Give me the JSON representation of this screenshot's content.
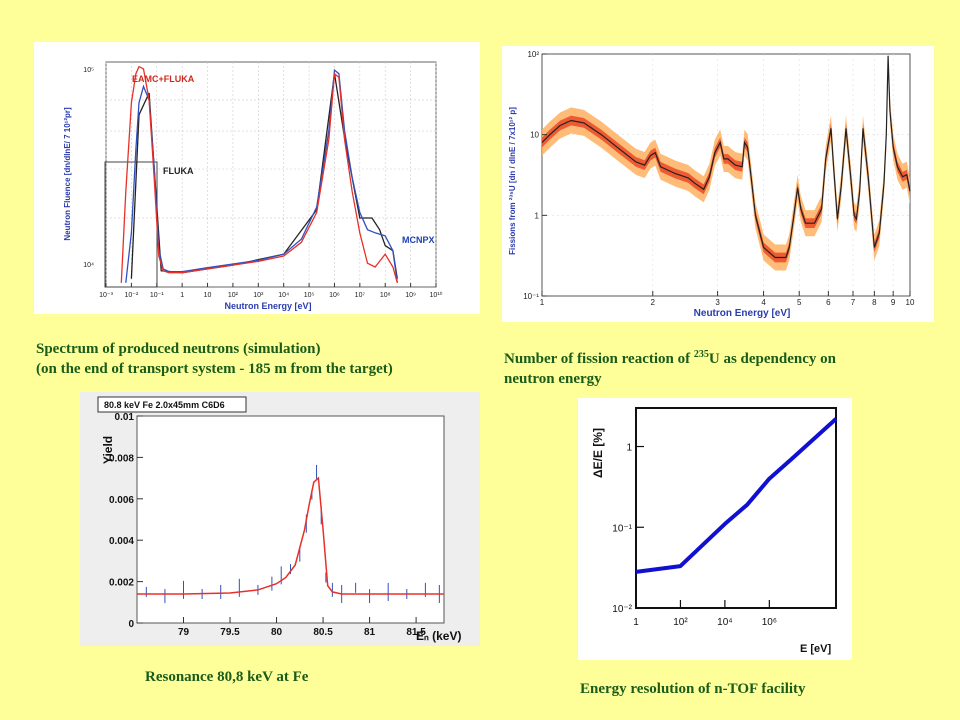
{
  "captions": {
    "c1_line1": "Spectrum of produced neutrons (simulation)",
    "c1_line2": "(on the end of transport system - 185 m from the target)",
    "c2_pre": "Number of fission reaction of ",
    "c2_sup": "235",
    "c2_post": "U as dependency on",
    "c2_line2": "neutron energy",
    "c3": "Resonance 80,8 keV at Fe",
    "c4": "Energy resolution of n-TOF facility"
  },
  "colors": {
    "background": "#ffff99",
    "caption": "#1a5c1a",
    "red": "#e8302a",
    "blue": "#3050c0",
    "dark": "#222222",
    "orange": "#ff8a1a",
    "resolution": "#1010d0"
  },
  "chart_data": [
    {
      "id": "spectrum",
      "type": "line",
      "xlabel": "Neutron Energy [eV]",
      "ylabel": "Neutron Fluence [dn/dlnE/ 7 10¹²pr]",
      "xscale": "log",
      "yscale": "log",
      "xlim": [
        0.001,
        10000000000
      ],
      "ylim": [
        40000,
        150000
      ],
      "x_ticks": [
        "10⁻³",
        "10⁻²",
        "10⁻¹",
        "1",
        "10",
        "10²",
        "10³",
        "10⁴",
        "10⁵",
        "10⁶",
        "10⁷",
        "10⁸",
        "10⁹",
        "10¹⁰"
      ],
      "y_ticks": [
        "10⁵",
        "10⁴"
      ],
      "annotations": [
        "EAMC+FLUKA",
        "FLUKA",
        "MCNPX"
      ],
      "series": [
        {
          "name": "EAMC+FLUKA",
          "color": "#e8302a",
          "x": [
            0.004,
            0.006,
            0.01,
            0.015,
            0.02,
            0.03,
            0.05,
            0.08,
            0.12,
            0.18,
            0.3,
            1,
            10,
            100,
            1000,
            10000,
            50000,
            200000,
            600000,
            1000000,
            1500000,
            2500000,
            5000000,
            10000000,
            20000000,
            40000000,
            100000000,
            200000000,
            300000000
          ],
          "y": [
            41000,
            70000,
            118000,
            140000,
            146000,
            144000,
            120000,
            75000,
            48000,
            44000,
            43500,
            43500,
            44500,
            45500,
            46500,
            48000,
            52000,
            62000,
            95000,
            140000,
            137000,
            95000,
            70000,
            55000,
            46000,
            45000,
            48500,
            45000,
            41000
          ]
        },
        {
          "name": "FLUKA",
          "color": "#3050c0",
          "x": [
            0.006,
            0.01,
            0.015,
            0.02,
            0.03,
            0.05,
            0.08,
            0.12,
            0.18,
            0.3,
            1,
            10,
            100,
            1000,
            10000,
            50000,
            200000,
            600000,
            1000000,
            1500000,
            2500000,
            5000000,
            10000000,
            20000000,
            40000000,
            100000000,
            200000000,
            300000000
          ],
          "y": [
            41000,
            55000,
            90000,
            118000,
            130000,
            120000,
            80000,
            50000,
            44500,
            43800,
            43800,
            44800,
            45800,
            46800,
            48500,
            53000,
            64000,
            100000,
            143000,
            140000,
            100000,
            76000,
            62000,
            56000,
            55000,
            54000,
            49500,
            41000
          ]
        },
        {
          "name": "MCNPX",
          "color": "#222222",
          "x": [
            0.01,
            0.02,
            0.05,
            0.15,
            1,
            100,
            10000,
            200000,
            1000000,
            2500000,
            10000000,
            30000000,
            60000000,
            100000000,
            200000000,
            300000000
          ],
          "y": [
            42000,
            110000,
            125000,
            44000,
            43500,
            45500,
            48500,
            63000,
            140000,
            96000,
            60000,
            60000,
            56000,
            51000,
            49500,
            42000
          ]
        }
      ]
    },
    {
      "id": "fission",
      "type": "line",
      "xlabel": "Neutron Energy [eV]",
      "ylabel": "Fissions from ²³⁵U [dn / dlnE / 7x10¹² p]",
      "xscale": "log",
      "yscale": "log",
      "xlim": [
        1,
        10
      ],
      "ylim": [
        0.1,
        100
      ],
      "x_ticks": [
        "1",
        "2",
        "3",
        "4",
        "5",
        "6",
        "7",
        "8",
        "9",
        "10"
      ],
      "y_ticks": [
        "10²",
        "10",
        "1",
        "10⁻¹"
      ],
      "series": [
        {
          "name": "",
          "color": "#222222",
          "x": [
            1,
            1.05,
            1.12,
            1.2,
            1.3,
            1.45,
            1.6,
            1.8,
            1.9,
            1.97,
            2.03,
            2.1,
            2.3,
            2.5,
            2.6,
            2.75,
            2.85,
            2.95,
            3.05,
            3.12,
            3.2,
            3.35,
            3.5,
            3.55,
            3.62,
            3.7,
            3.8,
            4.0,
            4.3,
            4.6,
            4.7,
            4.82,
            4.95,
            5.05,
            5.2,
            5.5,
            5.75,
            5.9,
            6.1,
            6.2,
            6.35,
            6.5,
            6.7,
            6.9,
            7.05,
            7.15,
            7.3,
            7.45,
            7.7,
            8.0,
            8.25,
            8.5,
            8.62,
            8.72,
            8.82,
            9.0,
            9.25,
            9.55,
            9.8,
            10
          ],
          "y": [
            8,
            10,
            13,
            15,
            14,
            10,
            7,
            4.6,
            4.2,
            5.5,
            6,
            4,
            3.3,
            2.9,
            2.5,
            2.1,
            3,
            6,
            8,
            5,
            5,
            4.2,
            4,
            8,
            7,
            3,
            1,
            0.4,
            0.3,
            0.3,
            0.4,
            0.9,
            2.2,
            1.2,
            0.8,
            0.8,
            1.2,
            5,
            12,
            4,
            0.9,
            2.3,
            12,
            3,
            1,
            0.9,
            2,
            12,
            3,
            0.4,
            0.6,
            2.5,
            10,
            95,
            20,
            7,
            4,
            3,
            3.2,
            2
          ]
        }
      ]
    },
    {
      "id": "resonance",
      "type": "scatter",
      "title": "80.8 keV Fe 2.0x45mm C6D6",
      "xlabel": "Eₙ (keV)",
      "ylabel": "Yield",
      "xlim": [
        78.5,
        81.8
      ],
      "ylim": [
        0,
        0.01
      ],
      "x_ticks": [
        "79",
        "79.5",
        "80",
        "80.5",
        "81",
        "81.5"
      ],
      "y_ticks": [
        "0",
        "0.002",
        "0.004",
        "0.006",
        "0.008",
        "0.01"
      ],
      "series": [
        {
          "name": "",
          "color": "#e8302a",
          "x": [
            78.5,
            79.0,
            79.5,
            79.8,
            80.0,
            80.1,
            80.2,
            80.3,
            80.35,
            80.4,
            80.45,
            80.5,
            80.55,
            80.6,
            80.7,
            81.0,
            81.5,
            81.8
          ],
          "y": [
            0.0014,
            0.0014,
            0.00145,
            0.0016,
            0.0019,
            0.0022,
            0.0028,
            0.0045,
            0.0057,
            0.0068,
            0.007,
            0.0045,
            0.0018,
            0.0015,
            0.0014,
            0.0014,
            0.0014,
            0.0014
          ]
        },
        {
          "name": "",
          "color": "#3050c0",
          "x": [
            78.6,
            78.8,
            79.0,
            79.2,
            79.4,
            79.6,
            79.8,
            79.95,
            80.05,
            80.15,
            80.25,
            80.32,
            80.38,
            80.43,
            80.48,
            80.53,
            80.6,
            80.7,
            80.85,
            81.0,
            81.2,
            81.4,
            81.6,
            81.75
          ],
          "y": [
            0.0015,
            0.0013,
            0.0016,
            0.0014,
            0.0015,
            0.0017,
            0.0016,
            0.0019,
            0.0023,
            0.0026,
            0.0033,
            0.0048,
            0.0062,
            0.0073,
            0.0052,
            0.0022,
            0.0016,
            0.0014,
            0.0017,
            0.0013,
            0.0015,
            0.0014,
            0.0016,
            0.0014
          ]
        }
      ]
    },
    {
      "id": "resolution",
      "type": "line",
      "xlabel": "E [eV]",
      "ylabel": "ΔE/E [%]",
      "xscale": "log",
      "yscale": "log",
      "xlim": [
        1,
        1000000000
      ],
      "ylim": [
        0.01,
        3
      ],
      "x_ticks": [
        "1",
        "10²",
        "10⁴",
        "10⁶"
      ],
      "y_ticks": [
        "1",
        "10⁻¹",
        "10⁻²"
      ],
      "series": [
        {
          "name": "",
          "color": "#1010d0",
          "x": [
            1,
            100,
            10000,
            100000,
            1000000,
            10000000,
            1000000000
          ],
          "y": [
            0.028,
            0.033,
            0.11,
            0.19,
            0.4,
            0.7,
            2.2
          ]
        }
      ]
    }
  ]
}
